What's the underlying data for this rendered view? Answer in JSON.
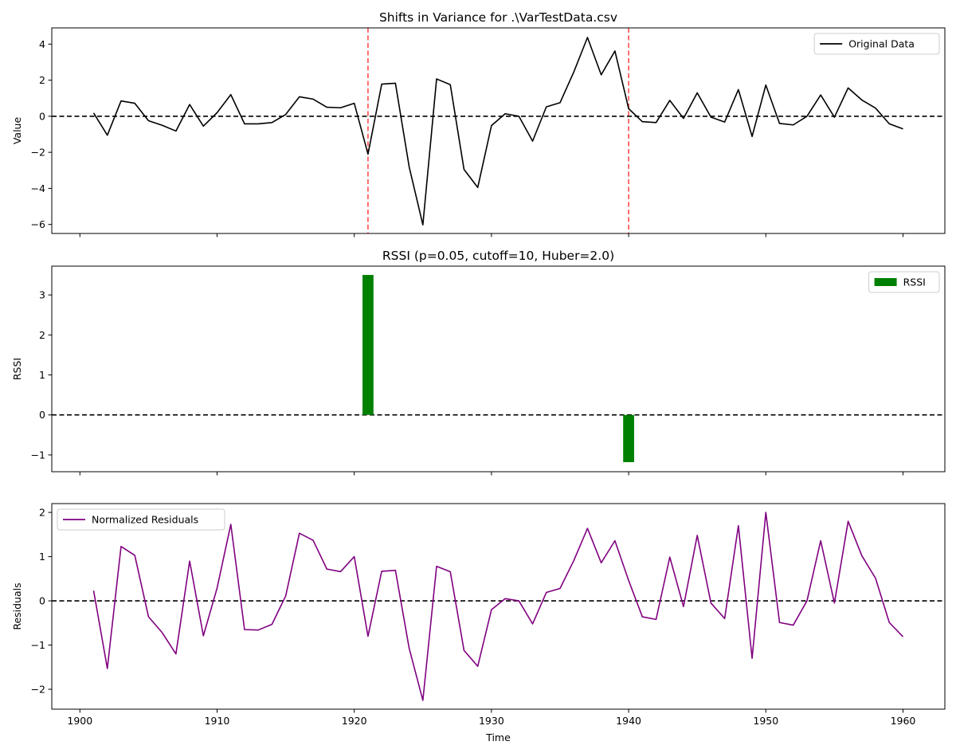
{
  "chart_data": [
    {
      "type": "line",
      "title": "Shifts in Variance for .\\VarTestData.csv",
      "xlabel": "",
      "ylabel": "Value",
      "xlim": [
        1897.95,
        1963.05
      ],
      "ylim": [
        -6.5,
        4.9
      ],
      "x_ticks": [
        1900,
        1910,
        1920,
        1930,
        1940,
        1950,
        1960
      ],
      "x_tick_labels_visible": false,
      "y_ticks": [
        -6,
        -4,
        -2,
        0,
        2,
        4
      ],
      "y_tick_labels": [
        "−6",
        "−4",
        "−2",
        "0",
        "2",
        "4"
      ],
      "grid": false,
      "legend_position": "top-right",
      "zero_line": true,
      "change_points": [
        1921,
        1940
      ],
      "change_point_color": "#ff0000",
      "series": [
        {
          "name": "Original Data",
          "color": "#000000",
          "x": [
            1901,
            1902,
            1903,
            1904,
            1905,
            1906,
            1907,
            1908,
            1909,
            1910,
            1911,
            1912,
            1913,
            1914,
            1915,
            1916,
            1917,
            1918,
            1919,
            1920,
            1921,
            1922,
            1923,
            1924,
            1925,
            1926,
            1927,
            1928,
            1929,
            1930,
            1931,
            1932,
            1933,
            1934,
            1935,
            1936,
            1937,
            1938,
            1939,
            1940,
            1941,
            1942,
            1943,
            1944,
            1945,
            1946,
            1947,
            1948,
            1949,
            1950,
            1951,
            1952,
            1953,
            1954,
            1955,
            1956,
            1957,
            1958,
            1959,
            1960
          ],
          "values": [
            0.18,
            -1.05,
            0.85,
            0.72,
            -0.25,
            -0.5,
            -0.82,
            0.65,
            -0.55,
            0.2,
            1.2,
            -0.42,
            -0.42,
            -0.35,
            0.1,
            1.08,
            0.95,
            0.5,
            0.47,
            0.72,
            -2.1,
            1.78,
            1.83,
            -2.8,
            -6.02,
            2.07,
            1.75,
            -2.95,
            -3.95,
            -0.52,
            0.14,
            0.0,
            -1.38,
            0.52,
            0.75,
            2.45,
            4.37,
            2.3,
            3.62,
            0.42,
            -0.3,
            -0.35,
            0.88,
            -0.12,
            1.3,
            -0.05,
            -0.32,
            1.48,
            -1.12,
            1.73,
            -0.4,
            -0.48,
            0.0,
            1.18,
            -0.05,
            1.57,
            0.9,
            0.45,
            -0.42,
            -0.7
          ]
        }
      ]
    },
    {
      "type": "bar",
      "title": "RSSI (p=0.05, cutoff=10, Huber=2.0)",
      "xlabel": "",
      "ylabel": "RSSI",
      "xlim": [
        1897.95,
        1963.05
      ],
      "ylim": [
        -1.42,
        3.72
      ],
      "x_ticks": [
        1900,
        1910,
        1920,
        1930,
        1940,
        1950,
        1960
      ],
      "x_tick_labels_visible": false,
      "y_ticks": [
        -1,
        0,
        1,
        2,
        3
      ],
      "y_tick_labels": [
        "−1",
        "0",
        "1",
        "2",
        "3"
      ],
      "grid": false,
      "legend_position": "top-right",
      "zero_line": true,
      "bar_width": 0.8,
      "series": [
        {
          "name": "RSSI",
          "color": "#008000",
          "x": [
            1921,
            1940
          ],
          "values": [
            3.5,
            -1.18
          ]
        }
      ]
    },
    {
      "type": "line",
      "title": "",
      "xlabel": "Time",
      "ylabel": "Residuals",
      "xlim": [
        1897.95,
        1963.05
      ],
      "ylim": [
        -2.45,
        2.2
      ],
      "x_ticks": [
        1900,
        1910,
        1920,
        1930,
        1940,
        1950,
        1960
      ],
      "x_tick_labels_visible": true,
      "y_ticks": [
        -2,
        -1,
        0,
        1,
        2
      ],
      "y_tick_labels": [
        "−2",
        "−1",
        "0",
        "1",
        "2"
      ],
      "grid": false,
      "legend_position": "top-left",
      "zero_line": true,
      "series": [
        {
          "name": "Normalized Residuals",
          "color": "#800080",
          "x": [
            1901,
            1902,
            1903,
            1904,
            1905,
            1906,
            1907,
            1908,
            1909,
            1910,
            1911,
            1912,
            1913,
            1914,
            1915,
            1916,
            1917,
            1918,
            1919,
            1920,
            1921,
            1922,
            1923,
            1924,
            1925,
            1926,
            1927,
            1928,
            1929,
            1930,
            1931,
            1932,
            1933,
            1934,
            1935,
            1936,
            1937,
            1938,
            1939,
            1940,
            1941,
            1942,
            1943,
            1944,
            1945,
            1946,
            1947,
            1948,
            1949,
            1950,
            1951,
            1952,
            1953,
            1954,
            1955,
            1956,
            1957,
            1958,
            1959,
            1960
          ],
          "values": [
            0.23,
            -1.53,
            1.23,
            1.03,
            -0.36,
            -0.72,
            -1.2,
            0.9,
            -0.79,
            0.29,
            1.73,
            -0.65,
            -0.66,
            -0.53,
            0.11,
            1.53,
            1.37,
            0.72,
            0.66,
            1.0,
            -0.8,
            0.67,
            0.69,
            -1.07,
            -2.25,
            0.78,
            0.66,
            -1.12,
            -1.48,
            -0.2,
            0.05,
            0.0,
            -0.52,
            0.19,
            0.28,
            0.91,
            1.64,
            0.86,
            1.36,
            0.46,
            -0.36,
            -0.42,
            0.99,
            -0.13,
            1.48,
            -0.05,
            -0.4,
            1.7,
            -1.3,
            2.0,
            -0.49,
            -0.55,
            0.0,
            1.36,
            -0.05,
            1.8,
            1.02,
            0.51,
            -0.49,
            -0.81
          ]
        }
      ]
    }
  ]
}
